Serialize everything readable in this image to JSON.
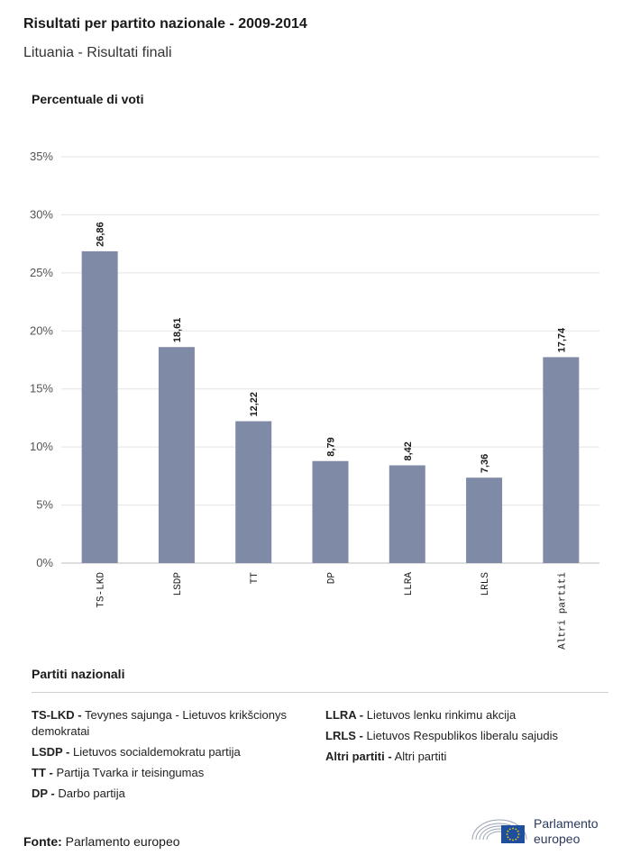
{
  "header": {
    "title": "Risultati per partito nazionale - 2009-2014",
    "subtitle": "Lituania - Risultati finali"
  },
  "chart_data": {
    "type": "bar",
    "ylabel": "Percentuale di voti",
    "categories": [
      "TS-LKD",
      "LSDP",
      "TT",
      "DP",
      "LLRA",
      "LRLS",
      "Altri partiti"
    ],
    "values": [
      26.86,
      18.61,
      12.22,
      8.79,
      8.42,
      7.36,
      17.74
    ],
    "value_labels": [
      "26,86",
      "18,61",
      "12,22",
      "8,79",
      "8,42",
      "7,36",
      "17,74"
    ],
    "ylim": [
      0,
      35
    ],
    "yticks": [
      0,
      5,
      10,
      15,
      20,
      25,
      30,
      35
    ],
    "ytick_labels": [
      "0%",
      "5%",
      "10%",
      "15%",
      "20%",
      "25%",
      "30%",
      "35%"
    ],
    "grid": true,
    "bar_color": "#7f8aa6"
  },
  "legend": {
    "title": "Partiti nazionali",
    "left": [
      {
        "abbr": "TS-LKD -",
        "name": "Tevynes sajunga - Lietuvos krikšcionys demokratai"
      },
      {
        "abbr": "LSDP -",
        "name": "Lietuvos socialdemokratu partija"
      },
      {
        "abbr": "TT -",
        "name": "Partija Tvarka ir teisingumas"
      },
      {
        "abbr": "DP -",
        "name": "Darbo partija"
      }
    ],
    "right": [
      {
        "abbr": "LLRA -",
        "name": "Lietuvos lenku rinkimu akcija"
      },
      {
        "abbr": "LRLS -",
        "name": "Lietuvos Respublikos liberalu sajudis"
      },
      {
        "abbr": "Altri partiti -",
        "name": "Altri partiti"
      }
    ]
  },
  "footer": {
    "source_label": "Fonte:",
    "source_value": "Parlamento europeo",
    "logo_line1": "Parlamento",
    "logo_line2": "europeo"
  }
}
